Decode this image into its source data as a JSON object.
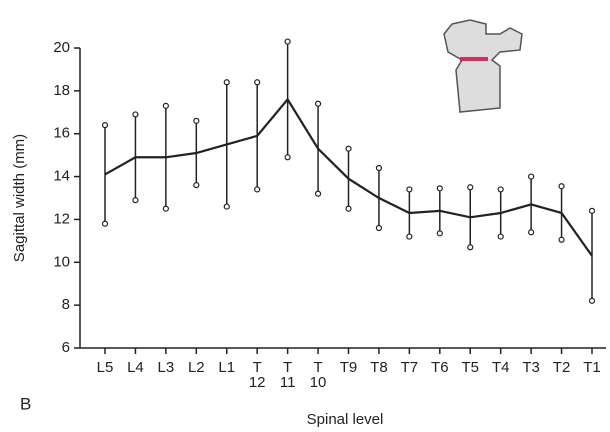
{
  "panel_label": "B",
  "chart_data": {
    "type": "line",
    "xlabel": "Spinal level",
    "ylabel": "Sagittal width (mm)",
    "categories": [
      "L5",
      "L4",
      "L3",
      "L2",
      "L1",
      "T 12",
      "T 11",
      "T 10",
      "T9",
      "T8",
      "T7",
      "T6",
      "T5",
      "T4",
      "T3",
      "T2",
      "T1"
    ],
    "values": [
      14.1,
      14.9,
      14.9,
      15.1,
      15.5,
      15.9,
      17.6,
      15.3,
      13.9,
      13.0,
      12.3,
      12.4,
      12.1,
      12.3,
      12.7,
      12.3,
      10.3
    ],
    "error": [
      2.3,
      2.0,
      2.4,
      1.5,
      2.9,
      2.5,
      2.7,
      2.1,
      1.4,
      1.4,
      1.1,
      1.05,
      1.4,
      1.1,
      1.3,
      1.25,
      2.1
    ],
    "color": "#222222",
    "ylim": [
      6,
      20
    ],
    "yticks": [
      6,
      8,
      10,
      12,
      14,
      16,
      18,
      20
    ]
  }
}
